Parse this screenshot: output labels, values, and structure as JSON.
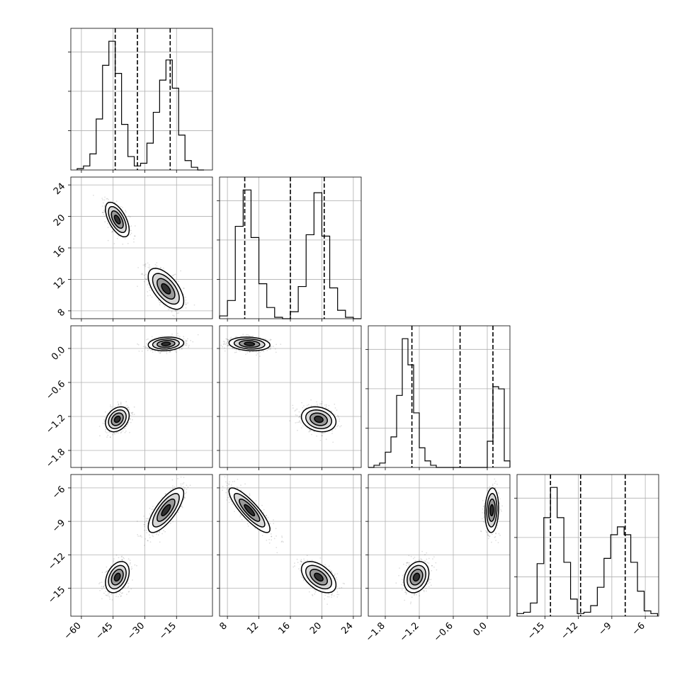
{
  "chart_data": {
    "type": "corner",
    "grid": true,
    "parameters": [
      {
        "id": "p1",
        "range": [
          -65,
          2
        ],
        "ticks": [
          -60,
          -45,
          -30,
          -15
        ],
        "tick_labels": [
          "−60",
          "−45",
          "−30",
          "−15"
        ],
        "quantiles": [
          -44,
          -33.5,
          -18
        ],
        "hist_bins": [
          -62,
          -59,
          -56,
          -53,
          -50,
          -47,
          -44,
          -41,
          -38,
          -35,
          -32,
          -29,
          -26,
          -23,
          -20,
          -17,
          -14,
          -11,
          -8,
          -5,
          -2
        ],
        "hist_counts": [
          1,
          3,
          12,
          38,
          78,
          96,
          72,
          34,
          10,
          3,
          5,
          20,
          43,
          67,
          82,
          61,
          26,
          7,
          2,
          0
        ]
      },
      {
        "id": "p2",
        "range": [
          7,
          25
        ],
        "ticks": [
          8,
          12,
          16,
          20,
          24
        ],
        "tick_labels": [
          "8",
          "12",
          "16",
          "20",
          "24"
        ],
        "quantiles": [
          10.2,
          16.0,
          20.3
        ],
        "hist_bins": [
          7,
          8,
          9,
          10,
          11,
          12,
          13,
          14,
          15,
          16,
          17,
          18,
          19,
          20,
          21,
          22,
          23,
          24,
          25
        ],
        "hist_counts": [
          2,
          13,
          66,
          92,
          58,
          25,
          8,
          1,
          0,
          5,
          23,
          60,
          90,
          59,
          22,
          6,
          1,
          0
        ]
      },
      {
        "id": "p3",
        "range": [
          -2.1,
          0.4
        ],
        "ticks": [
          -1.8,
          -1.2,
          -0.6,
          0.0
        ],
        "tick_labels": [
          "−1.8",
          "−1.2",
          "−0.6",
          "0.0"
        ],
        "quantiles": [
          -1.33,
          -0.48,
          0.1
        ],
        "hist_bins": [
          -2.1,
          -2.0,
          -1.9,
          -1.8,
          -1.7,
          -1.6,
          -1.5,
          -1.4,
          -1.3,
          -1.2,
          -1.1,
          -1.0,
          -0.9,
          -0.8,
          -0.7,
          -0.6,
          -0.5,
          -0.4,
          -0.3,
          -0.2,
          -0.1,
          0.0,
          0.1,
          0.2,
          0.3,
          0.4
        ],
        "hist_counts": [
          0,
          1,
          2,
          7,
          14,
          33,
          59,
          47,
          25,
          9,
          3,
          1,
          0,
          0,
          0,
          0,
          0,
          0,
          0,
          0,
          0,
          12,
          37,
          36,
          3,
          0
        ],
        "note_for_drawing": ""
      },
      {
        "id": "p4",
        "range": [
          -17.5,
          -4.8
        ],
        "ticks": [
          -15,
          -12,
          -9,
          -6
        ],
        "tick_labels": [
          "−15",
          "−12",
          "−9",
          "−6"
        ],
        "quantiles": [
          -14.5,
          -11.8,
          -7.8
        ],
        "hist_bins": [
          -17.5,
          -16.9,
          -16.3,
          -15.7,
          -15.1,
          -14.5,
          -13.9,
          -13.3,
          -12.7,
          -12.1,
          -11.5,
          -10.9,
          -10.3,
          -9.7,
          -9.1,
          -8.5,
          -7.9,
          -7.3,
          -6.7,
          -6.1,
          -5.5,
          -4.9
        ],
        "hist_counts": [
          2,
          3,
          10,
          40,
          75,
          98,
          75,
          41,
          13,
          2,
          3,
          8,
          22,
          44,
          62,
          68,
          62,
          41,
          19,
          4,
          2
        ]
      }
    ],
    "clusters": [
      {
        "means": [
          -43,
          19.6,
          -1.25,
          -14.0
        ],
        "sigmas": [
          2.8,
          1.1,
          0.11,
          0.7
        ],
        "correlations": [
          [
            1,
            -0.6,
            0.3,
            0.35
          ],
          [
            -0.6,
            1,
            -0.2,
            -0.5
          ],
          [
            0.3,
            -0.2,
            1,
            0.25
          ],
          [
            0.35,
            -0.5,
            0.25,
            1
          ]
        ]
      },
      {
        "means": [
          -20,
          10.8,
          0.08,
          -8.0
        ],
        "sigmas": [
          4.2,
          1.3,
          0.06,
          1.0
        ],
        "correlations": [
          [
            1,
            -0.6,
            0.15,
            0.75
          ],
          [
            -0.6,
            1,
            -0.15,
            -0.85
          ],
          [
            0.15,
            -0.15,
            1,
            0.1
          ],
          [
            0.75,
            -0.85,
            0.1,
            1
          ]
        ]
      }
    ]
  }
}
